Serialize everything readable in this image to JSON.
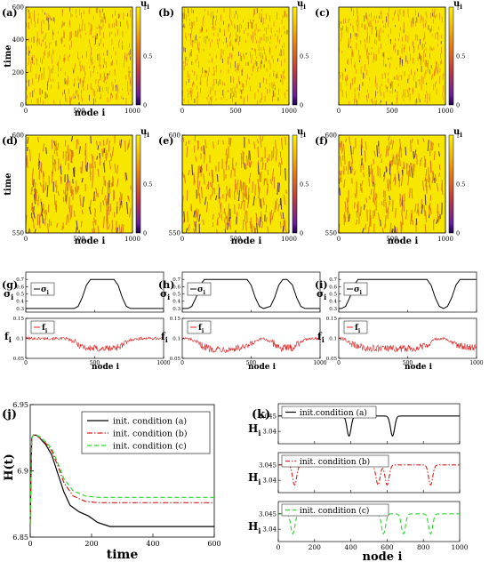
{
  "panel_letters": [
    "(a)",
    "(b)",
    "(c)",
    "(d)",
    "(e)",
    "(f)",
    "(g)",
    "(h)",
    "(i)",
    "(j)",
    "(k)"
  ],
  "colors": {
    "heatmap_high": "#f7e600",
    "heatmap_mid": "#d96a1e",
    "heatmap_low": "#3a1080",
    "sigma_line": "#000000",
    "f_line": "#e02020",
    "series_a": "#000000",
    "series_b": "#d62020",
    "series_c": "#2fd42f"
  },
  "chart_data": [
    {
      "type": "heatmap",
      "panel": "(a)",
      "variable": "u_i",
      "xlabel": "node i",
      "ylabel": "time",
      "xlim": [
        0,
        1000
      ],
      "ylim": [
        0,
        600
      ],
      "xticks": [
        "0",
        "500",
        "1000"
      ],
      "yticks": [
        "0",
        "200",
        "400",
        "600"
      ],
      "colorbar": {
        "label": "u",
        "label_sub": "i",
        "range": [
          0,
          1
        ],
        "ticks": [
          "0",
          "0.5",
          "1"
        ]
      }
    },
    {
      "type": "heatmap",
      "panel": "(b)",
      "variable": "u_i",
      "xlabel": "",
      "ylabel": "",
      "xlim": [
        0,
        1000
      ],
      "ylim": [
        0,
        600
      ],
      "xticks": [
        "0",
        "500",
        "1000"
      ],
      "yticks": [],
      "colorbar": {
        "label": "u",
        "label_sub": "i",
        "range": [
          0,
          1
        ],
        "ticks": [
          "0",
          "0.5",
          "1"
        ]
      }
    },
    {
      "type": "heatmap",
      "panel": "(c)",
      "variable": "u_i",
      "xlabel": "",
      "ylabel": "",
      "xlim": [
        0,
        1000
      ],
      "ylim": [
        0,
        600
      ],
      "xticks": [
        "0",
        "500",
        "1000"
      ],
      "yticks": [],
      "colorbar": {
        "label": "u",
        "label_sub": "i",
        "range": [
          0,
          1
        ],
        "ticks": [
          "0",
          "0.5",
          "1"
        ]
      }
    },
    {
      "type": "heatmap",
      "panel": "(d)",
      "variable": "u_i",
      "xlabel": "node i",
      "ylabel": "time",
      "xlim": [
        0,
        1000
      ],
      "ylim": [
        550,
        600
      ],
      "xticks": [
        "0",
        "500",
        "1000"
      ],
      "yticks": [
        "550",
        "600"
      ],
      "colorbar": {
        "label": "u",
        "label_sub": "i",
        "range": [
          0,
          1
        ],
        "ticks": [
          "0",
          "0.5",
          "1"
        ]
      }
    },
    {
      "type": "heatmap",
      "panel": "(e)",
      "variable": "u_i",
      "xlabel": "node i",
      "ylabel": "",
      "xlim": [
        0,
        1000
      ],
      "ylim": [
        550,
        600
      ],
      "xticks": [
        "0",
        "500",
        "1000"
      ],
      "yticks": [
        "550",
        "600"
      ],
      "colorbar": {
        "label": "u",
        "label_sub": "i",
        "range": [
          0,
          1
        ],
        "ticks": [
          "0",
          "0.5",
          "1"
        ]
      }
    },
    {
      "type": "heatmap",
      "panel": "(f)",
      "variable": "u_i",
      "xlabel": "node i",
      "ylabel": "",
      "xlim": [
        0,
        1000
      ],
      "ylim": [
        550,
        600
      ],
      "xticks": [
        "0",
        "500",
        "1000"
      ],
      "yticks": [
        "550",
        "600"
      ],
      "colorbar": {
        "label": "u",
        "label_sub": "i",
        "range": [
          0,
          1
        ],
        "ticks": [
          "0",
          "0.5",
          "1"
        ]
      }
    },
    {
      "type": "line",
      "panel": "(g)",
      "xlim": [
        0,
        1000
      ],
      "xlabel": "node i",
      "xticks": [
        "0",
        "500",
        "1000"
      ],
      "sigma": {
        "ylabel": "σ",
        "ylabel_sub": "i",
        "legend": "σ",
        "legend_sub": "i",
        "ylim": [
          0.25,
          0.8
        ],
        "yticks": [
          "0.3",
          "0.4",
          "0.5",
          "0.6",
          "0.7"
        ],
        "x": [
          0,
          350,
          380,
          410,
          440,
          470,
          640,
          670,
          700,
          730,
          760,
          1000
        ],
        "y": [
          0.3,
          0.3,
          0.33,
          0.45,
          0.62,
          0.7,
          0.7,
          0.62,
          0.45,
          0.33,
          0.3,
          0.3
        ]
      },
      "f": {
        "ylabel": "f",
        "ylabel_sub": "i",
        "legend": "f",
        "legend_sub": "i",
        "ylim": [
          0.05,
          0.15
        ],
        "yticks": [
          "0.05",
          "0.1",
          "0.15"
        ],
        "x": [
          0,
          150,
          300,
          380,
          450,
          550,
          640,
          700,
          760,
          850,
          1000
        ],
        "y": [
          0.1,
          0.1,
          0.099,
          0.085,
          0.075,
          0.074,
          0.076,
          0.082,
          0.097,
          0.1,
          0.1
        ]
      }
    },
    {
      "type": "line",
      "panel": "(h)",
      "xlim": [
        0,
        1000
      ],
      "xlabel": "node i",
      "xticks": [
        "0",
        "500",
        "1000"
      ],
      "sigma": {
        "ylabel": "σ",
        "ylabel_sub": "i",
        "legend": "σ",
        "legend_sub": "i",
        "ylim": [
          0.25,
          0.8
        ],
        "yticks": [
          "0.3",
          "0.4",
          "0.5",
          "0.6",
          "0.7"
        ],
        "x": [
          0,
          40,
          70,
          100,
          130,
          160,
          470,
          500,
          530,
          560,
          590,
          640,
          670,
          700,
          730,
          760,
          800,
          830,
          860,
          890,
          920,
          1000
        ],
        "y": [
          0.3,
          0.3,
          0.33,
          0.45,
          0.62,
          0.7,
          0.7,
          0.62,
          0.45,
          0.33,
          0.3,
          0.33,
          0.45,
          0.62,
          0.7,
          0.7,
          0.62,
          0.45,
          0.33,
          0.3,
          0.3,
          0.3
        ]
      },
      "f": {
        "ylabel": "f",
        "ylabel_sub": "i",
        "legend": "f",
        "legend_sub": "i",
        "ylim": [
          0.05,
          0.15
        ],
        "yticks": [
          "0.05",
          "0.1",
          "0.15"
        ],
        "x": [
          0,
          60,
          120,
          200,
          350,
          470,
          530,
          590,
          650,
          720,
          800,
          860,
          920,
          1000
        ],
        "y": [
          0.1,
          0.098,
          0.085,
          0.074,
          0.073,
          0.078,
          0.092,
          0.1,
          0.09,
          0.075,
          0.077,
          0.092,
          0.1,
          0.1
        ]
      }
    },
    {
      "type": "line",
      "panel": "(i)",
      "xlim": [
        0,
        1000
      ],
      "xlabel": "node i",
      "xticks": [
        "0",
        "500",
        "1000"
      ],
      "sigma": {
        "ylabel": "σ",
        "ylabel_sub": "i",
        "legend": "σ",
        "legend_sub": "i",
        "ylim": [
          0.25,
          0.8
        ],
        "yticks": [
          "0.3",
          "0.4",
          "0.5",
          "0.6",
          "0.7"
        ],
        "x": [
          0,
          20,
          50,
          80,
          110,
          140,
          640,
          670,
          700,
          730,
          760,
          790,
          820,
          850,
          880,
          1000
        ],
        "y": [
          0.3,
          0.3,
          0.33,
          0.45,
          0.62,
          0.7,
          0.7,
          0.62,
          0.45,
          0.33,
          0.3,
          0.33,
          0.45,
          0.62,
          0.7,
          0.7
        ]
      },
      "f": {
        "ylabel": "f",
        "ylabel_sub": "i",
        "legend": "f",
        "legend_sub": "i",
        "ylim": [
          0.05,
          0.15
        ],
        "yticks": [
          "0.05",
          "0.1",
          "0.15"
        ],
        "x": [
          0,
          40,
          100,
          200,
          400,
          550,
          640,
          700,
          760,
          820,
          900,
          1000
        ],
        "y": [
          0.1,
          0.098,
          0.085,
          0.075,
          0.074,
          0.075,
          0.085,
          0.098,
          0.1,
          0.09,
          0.08,
          0.077
        ]
      }
    },
    {
      "type": "line",
      "panel": "(j)",
      "xlabel": "time",
      "ylabel": "H(t)",
      "xlim": [
        0,
        600
      ],
      "ylim": [
        6.85,
        6.95
      ],
      "xticks": [
        "0",
        "200",
        "400",
        "600"
      ],
      "yticks": [
        "6.85",
        "6.9",
        "6.95"
      ],
      "legend_position": "top-right",
      "series": [
        {
          "name": "init. condition (a)",
          "x": [
            0,
            5,
            10,
            20,
            30,
            50,
            70,
            90,
            110,
            130,
            160,
            190,
            220,
            260,
            300,
            400,
            500,
            600
          ],
          "y": [
            6.86,
            6.925,
            6.927,
            6.927,
            6.925,
            6.92,
            6.912,
            6.898,
            6.884,
            6.874,
            6.869,
            6.866,
            6.861,
            6.858,
            6.858,
            6.858,
            6.858,
            6.858
          ]
        },
        {
          "name": "init. condition (b)",
          "x": [
            0,
            5,
            10,
            20,
            30,
            50,
            70,
            90,
            110,
            140,
            180,
            220,
            300,
            400,
            500,
            600
          ],
          "y": [
            6.86,
            6.925,
            6.927,
            6.927,
            6.925,
            6.921,
            6.915,
            6.904,
            6.891,
            6.881,
            6.877,
            6.876,
            6.876,
            6.876,
            6.876,
            6.876
          ]
        },
        {
          "name": "init. condition (c)",
          "x": [
            0,
            5,
            10,
            20,
            30,
            50,
            70,
            90,
            110,
            140,
            180,
            220,
            300,
            400,
            500,
            600
          ],
          "y": [
            6.86,
            6.925,
            6.927,
            6.927,
            6.926,
            6.922,
            6.917,
            6.906,
            6.894,
            6.885,
            6.881,
            6.88,
            6.88,
            6.88,
            6.88,
            6.88
          ]
        }
      ]
    },
    {
      "type": "line",
      "panel": "(k)",
      "xlabel": "node i",
      "ylabel": "H",
      "ylabel_sub": "i",
      "xlim": [
        0,
        1000
      ],
      "xticks": [
        "0",
        "200",
        "400",
        "600",
        "800",
        "1000"
      ],
      "panels": [
        {
          "name": "init.condition (a)",
          "ylim": [
            3.036,
            3.049
          ],
          "yticks": [
            "3.04",
            "3.045"
          ],
          "baseline": 3.045,
          "dip_depth": 0.0065,
          "dips": [
            390,
            630
          ]
        },
        {
          "name": "init. condition (b)",
          "ylim": [
            3.036,
            3.049
          ],
          "yticks": [
            "3.04",
            "3.045"
          ],
          "baseline": 3.045,
          "dip_depth": 0.0065,
          "dips": [
            90,
            550,
            600,
            840
          ]
        },
        {
          "name": "init. condition (c)",
          "ylim": [
            3.036,
            3.049
          ],
          "yticks": [
            "3.04",
            "3.045"
          ],
          "baseline": 3.045,
          "dip_depth": 0.0065,
          "dips": [
            80,
            580,
            690,
            840
          ]
        }
      ]
    }
  ]
}
